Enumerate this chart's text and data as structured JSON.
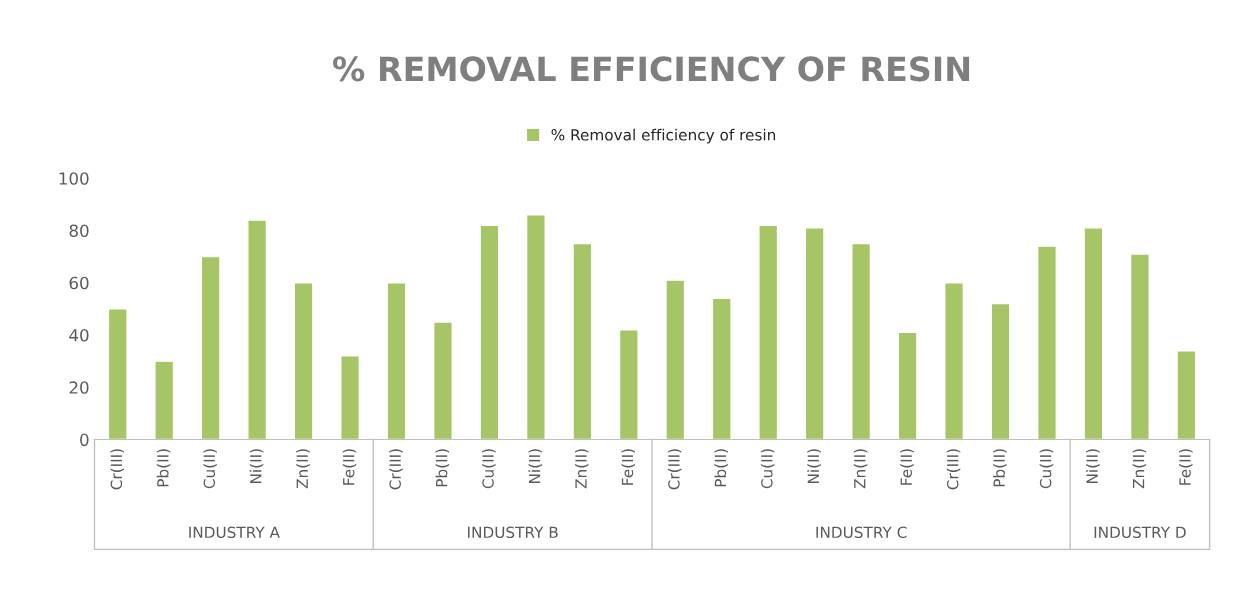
{
  "chart_data": {
    "type": "bar",
    "title": "% REMOVAL EFFICIENCY OF RESIN",
    "categories": [
      "Cr(III)",
      "Pb(II)",
      "Cu(II)",
      "Ni(II)",
      "Zn(II)",
      "Fe(II)",
      "Cr(III)",
      "Pb(II)",
      "Cu(II)",
      "Ni(II)",
      "Zn(II)",
      "Fe(II)",
      "Cr(III)",
      "Pb(II)",
      "Cu(II)",
      "Ni(II)",
      "Zn(II)",
      "Fe(II)",
      "Cr(III)",
      "Pb(II)",
      "Cu(II)",
      "Ni(II)",
      "Zn(II)",
      "Fe(II)"
    ],
    "series": [
      {
        "name": "% Removal efficiency of resin",
        "color": "#a5c566",
        "values": [
          50,
          30,
          70,
          84,
          60,
          32,
          60,
          45,
          82,
          86,
          75,
          42,
          61,
          54,
          82,
          81,
          75,
          41,
          60,
          52,
          74,
          81,
          71,
          34
        ]
      }
    ],
    "annotations": [
      "INDUSTRY A",
      "INDUSTRY B",
      "INDUSTRY C",
      "INDUSTRY D"
    ],
    "ylim": [
      0,
      100
    ],
    "yticks": [
      0,
      20,
      40,
      60,
      80,
      100
    ],
    "grid": false,
    "legend": "top"
  }
}
